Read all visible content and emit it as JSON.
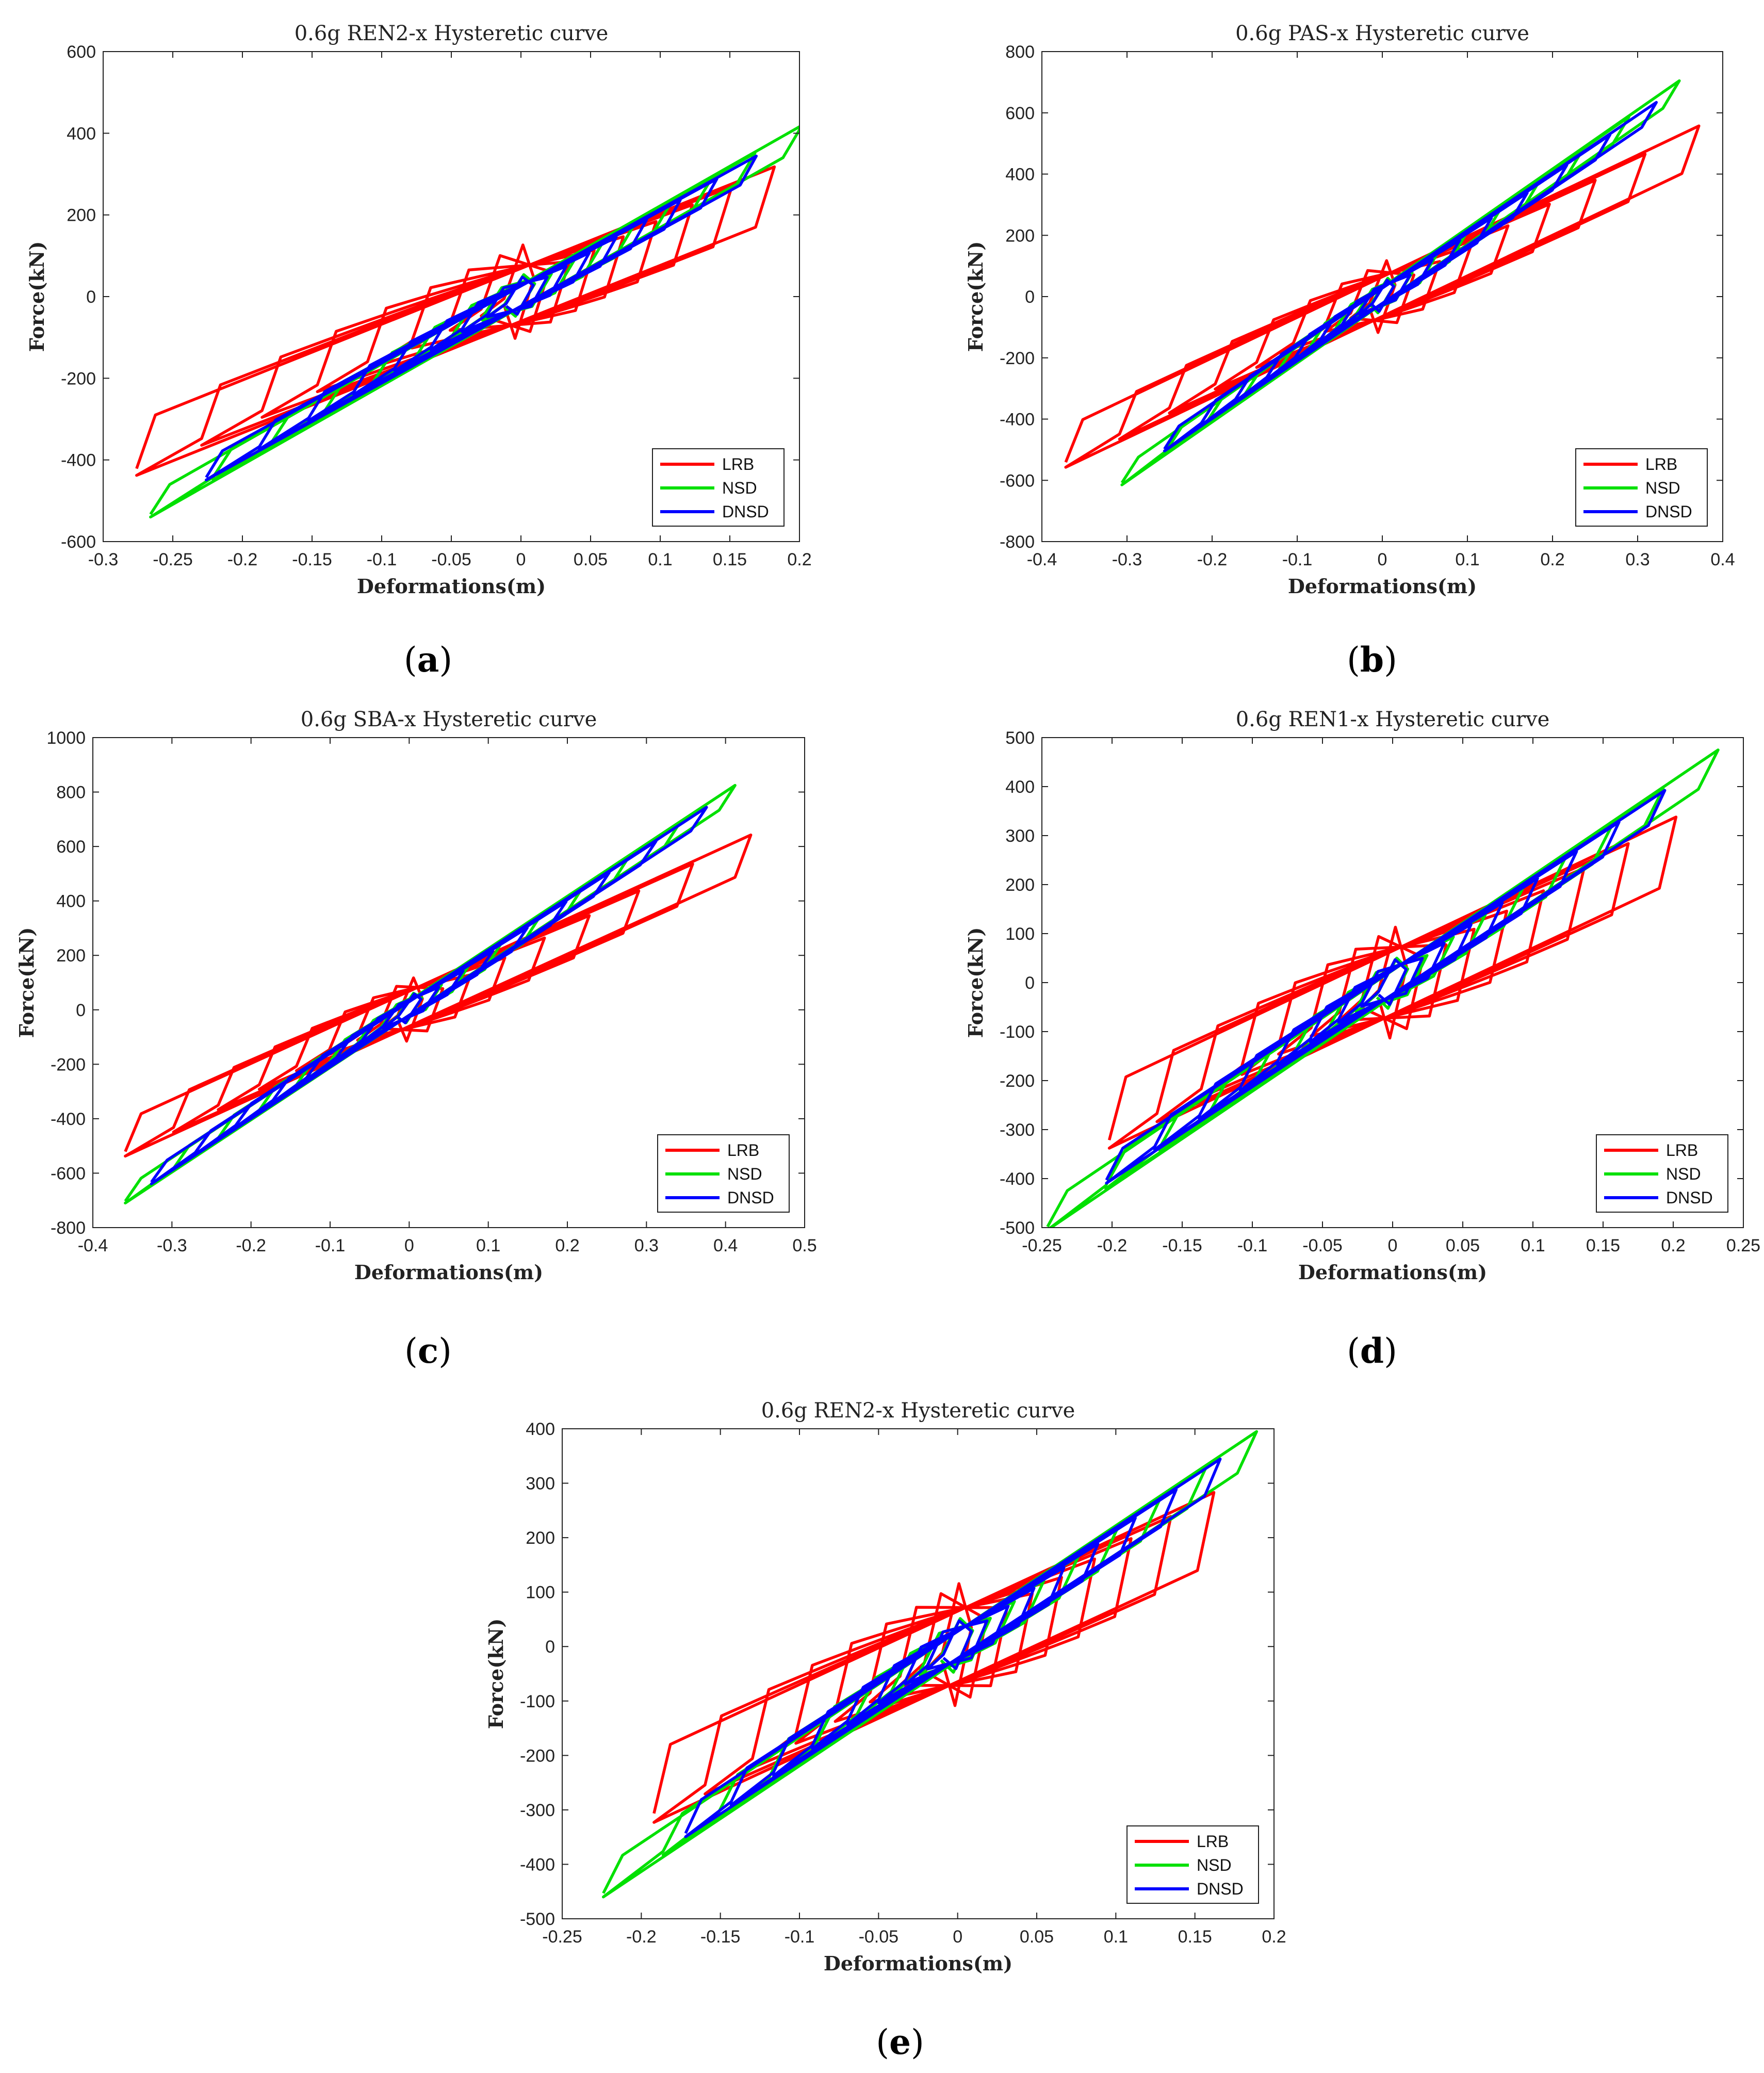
{
  "captions": {
    "a": "a",
    "b": "b",
    "c": "c",
    "d": "d",
    "e": "e"
  },
  "legend_colors": {
    "LRB": "#ff0000",
    "NSD": "#00e000",
    "DNSD": "#0000ff"
  },
  "chart_data": [
    {
      "id": "a",
      "type": "line",
      "title": "0.6g REN2-x Hysteretic curve",
      "xlabel": "Deformations(m)",
      "ylabel": "Force(kN)",
      "xlim": [
        -0.3,
        0.2
      ],
      "ylim": [
        -600,
        600
      ],
      "xticks": [
        -0.3,
        -0.25,
        -0.2,
        -0.15,
        -0.1,
        -0.05,
        0,
        0.05,
        0.1,
        0.15,
        0.2
      ],
      "xtick_labels": [
        "-0.3",
        "-0.25",
        "-0.2",
        "-0.15",
        "-0.1",
        "-0.05",
        "0",
        "0.05",
        "0.1",
        "0.15",
        "0.2"
      ],
      "yticks": [
        -600,
        -400,
        -200,
        0,
        200,
        400,
        600
      ],
      "ytick_labels": [
        "-600",
        "-400",
        "-200",
        "0",
        "200",
        "400",
        "600"
      ],
      "legend": "bottom-right",
      "series": [
        {
          "name": "LRB",
          "xmin": -0.272,
          "xmax": 0.178,
          "fmin": -415,
          "fmax": 295,
          "q": 110
        },
        {
          "name": "NSD",
          "xmin": -0.262,
          "xmax": 0.198,
          "fmin": -525,
          "fmax": 405,
          "q": 45
        },
        {
          "name": "DNSD",
          "xmin": -0.222,
          "xmax": 0.165,
          "fmin": -435,
          "fmax": 330,
          "q": 42
        }
      ]
    },
    {
      "id": "b",
      "type": "line",
      "title": "0.6g PAS-x Hysteretic curve",
      "xlabel": "Deformations(m)",
      "ylabel": "Force(kN)",
      "xlim": [
        -0.4,
        0.4
      ],
      "ylim": [
        -800,
        800
      ],
      "xticks": [
        -0.4,
        -0.3,
        -0.2,
        -0.1,
        0,
        0.1,
        0.2,
        0.3,
        0.4
      ],
      "xtick_labels": [
        "-0.4",
        "-0.3",
        "-0.2",
        "-0.1",
        "0",
        "0.1",
        "0.2",
        "0.3",
        "0.4"
      ],
      "yticks": [
        -800,
        -600,
        -400,
        -200,
        0,
        200,
        400,
        600,
        800
      ],
      "ytick_labels": [
        "-800",
        "-600",
        "-400",
        "-200",
        "0",
        "200",
        "400",
        "600",
        "800"
      ],
      "legend": "bottom-right",
      "series": [
        {
          "name": "LRB",
          "xmin": -0.368,
          "xmax": 0.368,
          "fmin": -535,
          "fmax": 535,
          "q": 110
        },
        {
          "name": "NSD",
          "xmin": -0.302,
          "xmax": 0.345,
          "fmin": -600,
          "fmax": 690,
          "q": 45
        },
        {
          "name": "DNSD",
          "xmin": -0.252,
          "xmax": 0.318,
          "fmin": -490,
          "fmax": 620,
          "q": 42
        }
      ]
    },
    {
      "id": "c",
      "type": "line",
      "title": "0.6g SBA-x Hysteretic curve",
      "xlabel": "Deformations(m)",
      "ylabel": "Force(kN)",
      "xlim": [
        -0.4,
        0.5
      ],
      "ylim": [
        -800,
        1000
      ],
      "xticks": [
        -0.4,
        -0.3,
        -0.2,
        -0.1,
        0,
        0.1,
        0.2,
        0.3,
        0.4,
        0.5
      ],
      "xtick_labels": [
        "-0.4",
        "-0.3",
        "-0.2",
        "-0.1",
        "0",
        "0.1",
        "0.2",
        "0.3",
        "0.4",
        "0.5"
      ],
      "yticks": [
        -800,
        -600,
        -400,
        -200,
        0,
        200,
        400,
        600,
        800,
        1000
      ],
      "ytick_labels": [
        "-800",
        "-600",
        "-400",
        "-200",
        "0",
        "200",
        "400",
        "600",
        "800",
        "1000"
      ],
      "legend": "bottom-right",
      "series": [
        {
          "name": "LRB",
          "xmin": -0.355,
          "xmax": 0.428,
          "fmin": -515,
          "fmax": 620,
          "q": 110
        },
        {
          "name": "NSD",
          "xmin": -0.355,
          "xmax": 0.408,
          "fmin": -695,
          "fmax": 810,
          "q": 45
        },
        {
          "name": "DNSD",
          "xmin": -0.322,
          "xmax": 0.372,
          "fmin": -625,
          "fmax": 730,
          "q": 42
        }
      ]
    },
    {
      "id": "d",
      "type": "line",
      "title": "0.6g REN1-x Hysteretic curve",
      "xlabel": "Deformations(m)",
      "ylabel": "Force(kN)",
      "xlim": [
        -0.25,
        0.25
      ],
      "ylim": [
        -500,
        500
      ],
      "xticks": [
        -0.25,
        -0.2,
        -0.15,
        -0.1,
        -0.05,
        0,
        0.05,
        0.1,
        0.15,
        0.2,
        0.25
      ],
      "xtick_labels": [
        "-0.25",
        "-0.2",
        "-0.15",
        "-0.1",
        "-0.05",
        "0",
        "0.05",
        "0.1",
        "0.15",
        "0.2",
        "0.25"
      ],
      "yticks": [
        -500,
        -400,
        -300,
        -200,
        -100,
        0,
        100,
        200,
        300,
        400,
        500
      ],
      "ytick_labels": [
        "-500",
        "-400",
        "-300",
        "-200",
        "-100",
        "0",
        "100",
        "200",
        "300",
        "400",
        "500"
      ],
      "legend": "bottom-right",
      "series": [
        {
          "name": "LRB",
          "xmin": -0.198,
          "xmax": 0.198,
          "fmin": -315,
          "fmax": 315,
          "q": 110
        },
        {
          "name": "NSD",
          "xmin": -0.242,
          "xmax": 0.228,
          "fmin": -490,
          "fmax": 460,
          "q": 45
        },
        {
          "name": "DNSD",
          "xmin": -0.2,
          "xmax": 0.19,
          "fmin": -395,
          "fmax": 378,
          "q": 42
        }
      ]
    },
    {
      "id": "e",
      "type": "line",
      "title": "0.6g REN2-x Hysteretic curve",
      "xlabel": "Deformations(m)",
      "ylabel": "Force(kN)",
      "xlim": [
        -0.25,
        0.2
      ],
      "ylim": [
        -500,
        400
      ],
      "xticks": [
        -0.25,
        -0.2,
        -0.15,
        -0.1,
        -0.05,
        0,
        0.05,
        0.1,
        0.15,
        0.2
      ],
      "xtick_labels": [
        "-0.25",
        "-0.2",
        "-0.15",
        "-0.1",
        "-0.05",
        "0",
        "0.05",
        "0.1",
        "0.15",
        "0.2"
      ],
      "yticks": [
        -500,
        -400,
        -300,
        -200,
        -100,
        0,
        100,
        200,
        300,
        400
      ],
      "ytick_labels": [
        "-500",
        "-400",
        "-300",
        "-200",
        "-100",
        "0",
        "100",
        "200",
        "300",
        "400"
      ],
      "legend": "bottom-right",
      "series": [
        {
          "name": "LRB",
          "xmin": -0.188,
          "xmax": 0.158,
          "fmin": -300,
          "fmax": 260,
          "q": 110
        },
        {
          "name": "NSD",
          "xmin": -0.22,
          "xmax": 0.185,
          "fmin": -445,
          "fmax": 380,
          "q": 45
        },
        {
          "name": "DNSD",
          "xmin": -0.168,
          "xmax": 0.162,
          "fmin": -335,
          "fmax": 330,
          "q": 42
        }
      ]
    }
  ]
}
